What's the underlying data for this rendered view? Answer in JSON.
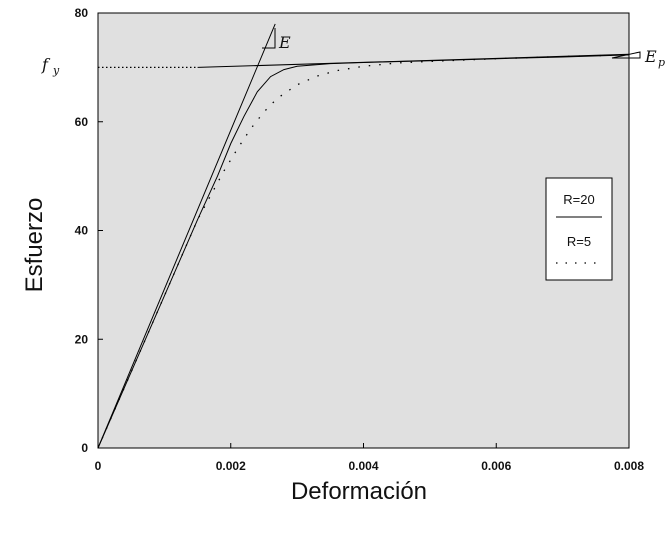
{
  "chart_data": {
    "type": "line",
    "title": "",
    "xlabel": "Deformación",
    "ylabel": "Esfuerzo",
    "xlim": [
      0,
      0.008
    ],
    "ylim": [
      0,
      80
    ],
    "x_ticks": [
      "0",
      "0.002",
      "0.004",
      "0.006",
      "0.008"
    ],
    "y_ticks": [
      "0",
      "20",
      "40",
      "60",
      "80"
    ],
    "grid": false,
    "background": "#e0e0e0",
    "annotations": {
      "fy": "f",
      "fy_sub": "y",
      "E": "E",
      "Ep": "E",
      "Ep_sub": "p"
    },
    "legend": {
      "position": "right",
      "entries": [
        {
          "label": "R=20",
          "style": "solid"
        },
        {
          "label": "R=5",
          "style": "dotted"
        }
      ]
    },
    "series": [
      {
        "name": "R=20",
        "style": "solid",
        "x": [
          0,
          0.0005,
          0.001,
          0.0015,
          0.0018,
          0.002,
          0.0022,
          0.0024,
          0.0026,
          0.0028,
          0.003,
          0.0035,
          0.004,
          0.005,
          0.006,
          0.007,
          0.008
        ],
        "y": [
          0,
          14,
          28,
          42,
          50,
          56,
          61,
          65.5,
          68.3,
          69.6,
          70.2,
          70.7,
          70.9,
          71.2,
          71.6,
          71.9,
          72.3
        ]
      },
      {
        "name": "R=5",
        "style": "dotted",
        "x": [
          0,
          0.0005,
          0.001,
          0.0015,
          0.0017,
          0.0019,
          0.0021,
          0.0023,
          0.0025,
          0.0027,
          0.003,
          0.0033,
          0.0036,
          0.004,
          0.0045,
          0.005,
          0.006,
          0.007,
          0.008
        ],
        "y": [
          0,
          14,
          28,
          42,
          46.5,
          51,
          55,
          58.7,
          61.8,
          64.3,
          66.8,
          68.4,
          69.4,
          70.2,
          70.8,
          71.1,
          71.6,
          72,
          72.3
        ]
      },
      {
        "name": "elastic",
        "style": "solid",
        "x": [
          0,
          0.00267
        ],
        "y": [
          0,
          78
        ]
      },
      {
        "name": "hardening",
        "style": "solid",
        "x": [
          0.0015,
          0.008
        ],
        "y": [
          70,
          72.4
        ]
      },
      {
        "name": "fy-guide",
        "style": "dotted",
        "x": [
          0.0,
          0.0015
        ],
        "y": [
          70,
          70
        ]
      }
    ]
  }
}
